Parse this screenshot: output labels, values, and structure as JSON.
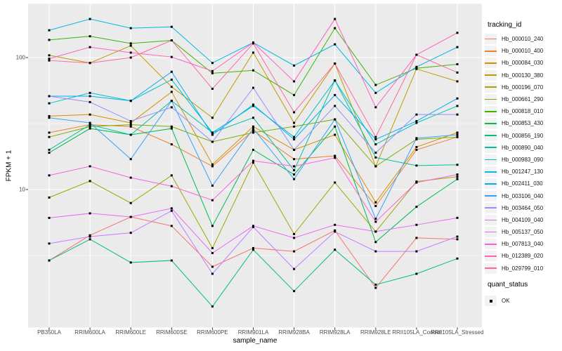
{
  "chart_data": {
    "type": "line",
    "title": "",
    "xlabel": "sample_name",
    "ylabel": "FPKM + 1",
    "y_scale": "log10",
    "y_axis_tick_labels": [
      "100",
      "10"
    ],
    "y_tick_values": [
      100,
      10
    ],
    "ylim": [
      1,
      250
    ],
    "grid": "on",
    "legend_position": "right",
    "legend_title": "tracking_id",
    "quant_status": {
      "title": "quant_status",
      "items": [
        {
          "label": "OK",
          "marker": "black-square"
        }
      ]
    },
    "point_marker": {
      "shape": "square",
      "color": "#000000"
    },
    "categories": [
      "PB350LA",
      "RRIM600LA",
      "RRIM600LE",
      "RRIM600SE",
      "RRIM600PE",
      "RRIM901LA",
      "RRIM928BA",
      "RRIM928LA",
      "RRIM928LE",
      "RRII105LA_Control",
      "RRII105LA_Stressed"
    ],
    "series": [
      {
        "name": "Hb_000010_240",
        "color": "#F8766D",
        "values": [
          2.9,
          4.5,
          6.2,
          5.3,
          2.6,
          3.6,
          3.4,
          4.9,
          1.8,
          4.3,
          4.2
        ]
      },
      {
        "name": "Hb_000010_400",
        "color": "#EA8331",
        "values": [
          27,
          31,
          30,
          22,
          15,
          28,
          17,
          18,
          7.5,
          20,
          25
        ]
      },
      {
        "name": "Hb_000084_030",
        "color": "#D89000",
        "values": [
          36,
          37,
          32,
          55,
          15.5,
          30,
          20,
          26,
          8,
          21,
          27
        ]
      },
      {
        "name": "Hb_000130_380",
        "color": "#C09B00",
        "values": [
          104,
          91,
          123,
          60,
          35,
          109,
          32,
          90,
          15,
          82,
          66
        ]
      },
      {
        "name": "Hb_000196_070",
        "color": "#A3A500",
        "values": [
          8.7,
          11.6,
          7.9,
          12.8,
          3.6,
          16,
          4.6,
          11.3,
          4.8,
          11.5,
          12.5
        ]
      },
      {
        "name": "Hb_000661_290",
        "color": "#7CAE00",
        "values": [
          25,
          30,
          31,
          30,
          23,
          27,
          30,
          34,
          15,
          24,
          25
        ]
      },
      {
        "name": "Hb_000818_010",
        "color": "#39B600",
        "values": [
          136,
          145,
          128,
          135,
          76,
          80,
          52,
          167,
          62,
          83,
          89
        ]
      },
      {
        "name": "Hb_000853_430",
        "color": "#00BB4E",
        "values": [
          19,
          29,
          26,
          29,
          5.3,
          20,
          13,
          30,
          4,
          7.4,
          12
        ]
      },
      {
        "name": "Hb_000856_190",
        "color": "#00BF7D",
        "values": [
          2.9,
          4.2,
          2.8,
          2.9,
          1.3,
          3.5,
          1.7,
          3.5,
          1.9,
          2.3,
          3
        ]
      },
      {
        "name": "Hb_000890_040",
        "color": "#00C1A3",
        "values": [
          20,
          31,
          26,
          47,
          27,
          35,
          14,
          67,
          17.5,
          15.2,
          15.4
        ]
      },
      {
        "name": "Hb_000983_090",
        "color": "#00BFC4",
        "values": [
          45,
          54,
          47,
          68,
          27,
          43,
          25,
          67,
          22,
          32,
          43
        ]
      },
      {
        "name": "Hb_001247_130",
        "color": "#00BAE0",
        "values": [
          161,
          196,
          167,
          171,
          91,
          130,
          87,
          126,
          54,
          85,
          120
        ]
      },
      {
        "name": "Hb_002411_030",
        "color": "#00B0F6",
        "values": [
          51,
          51,
          47,
          78,
          26,
          44,
          24,
          52,
          24,
          33,
          49
        ]
      },
      {
        "name": "Hb_003106_040",
        "color": "#35A2FF",
        "values": [
          35,
          32,
          17,
          47,
          10.7,
          29,
          12,
          34,
          6,
          24.5,
          26
        ]
      },
      {
        "name": "Hb_003464_050",
        "color": "#9590FF",
        "values": [
          51,
          46,
          33,
          42,
          23,
          59,
          20,
          43,
          19,
          37,
          37
        ]
      },
      {
        "name": "Hb_004109_040",
        "color": "#C77CFF",
        "values": [
          3.9,
          4.4,
          4.7,
          6.9,
          2.3,
          5.2,
          2.5,
          4.8,
          3.4,
          3.4,
          4.4
        ]
      },
      {
        "name": "Hb_005137_050",
        "color": "#E76BF3",
        "values": [
          6.1,
          6.6,
          6.2,
          7.2,
          3.3,
          5.3,
          4.3,
          5.4,
          4.8,
          5.4,
          6.1
        ]
      },
      {
        "name": "Hb_007813_040",
        "color": "#FA62DB",
        "values": [
          12.8,
          15,
          12.3,
          10.6,
          8.3,
          16.5,
          15,
          17.4,
          5.7,
          11.3,
          13
        ]
      },
      {
        "name": "Hb_012389_020",
        "color": "#FF61C3",
        "values": [
          98,
          120,
          109,
          101,
          79,
          130,
          66,
          196,
          42,
          105,
          154
        ]
      },
      {
        "name": "Hb_029799_010",
        "color": "#FF67A4",
        "values": [
          95,
          91,
          100,
          135,
          58,
          128,
          38.5,
          90,
          25,
          105,
          77
        ]
      }
    ]
  },
  "style": {
    "panel_bg": "#EBEBEB",
    "grid_color": "#FFFFFF",
    "tick_mark_color": "#333333",
    "tick_label_color": "#4D4D4D",
    "text_color": "#000000",
    "legend_key_bg": "#F2F2F2",
    "point_color": "#000000"
  }
}
